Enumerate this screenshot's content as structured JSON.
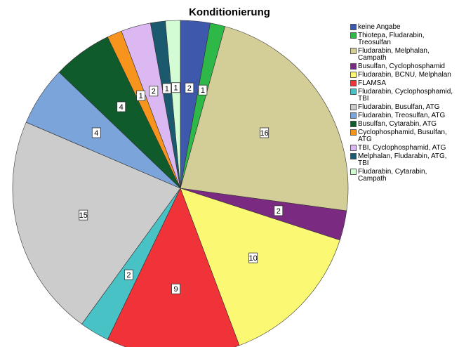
{
  "chart_data": {
    "type": "pie",
    "title": "Konditionierung",
    "categories": [
      "keine Angabe",
      "Thiotepa, Fludarabin, Treosulfan",
      "Fludarabin, Melphalan, Campath",
      "Busulfan, Cyclophosphamid",
      "Fludarabin, BCNU, Melphalan",
      "FLAMSA",
      "Fludarabin, Cyclophosphamid, TBI",
      "Fludarabin, Busulfan, ATG",
      "Fludarabin, Treosulfan, ATG",
      "Busulfan, Cytarabin, ATG",
      "Cyclophosphamid, Busulfan, ATG",
      "TBI, Cyclophosphamid, ATG",
      "Melphalan, Fludarabin, ATG, TBI",
      "Fludarabin, Cytarabin, Campath"
    ],
    "values": [
      2,
      1,
      16,
      2,
      10,
      9,
      2,
      15,
      4,
      4,
      1,
      2,
      1,
      1
    ],
    "colors": [
      "#3e58ac",
      "#2eb848",
      "#d3ce97",
      "#7b2a82",
      "#fbf873",
      "#ef3338",
      "#48c2c5",
      "#cccccc",
      "#7ba4db",
      "#0f5b2c",
      "#f7941d",
      "#dbb8f2",
      "#1b5a6e",
      "#d4fcd4"
    ],
    "legend": "right"
  }
}
